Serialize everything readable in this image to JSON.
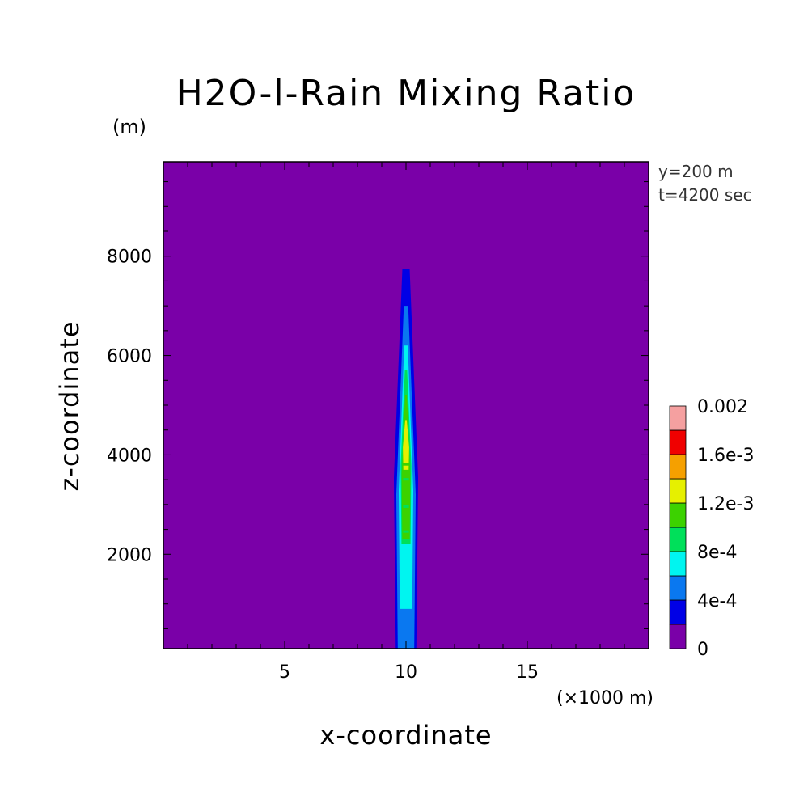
{
  "chart_data": {
    "type": "heatmap",
    "title": "H2O-l-Rain Mixing Ratio",
    "xlabel": "x-coordinate",
    "ylabel": "z-coordinate",
    "x_unit": "(×1000 m)",
    "y_unit": "(m)",
    "annotations": [
      "y=200 m",
      "t=4200 sec"
    ],
    "xlim": [
      0,
      20
    ],
    "ylim": [
      100,
      9900
    ],
    "xticks": [
      5,
      10,
      15
    ],
    "yticks": [
      2000,
      4000,
      6000,
      8000
    ],
    "colorbar": {
      "levels": [
        0,
        0.0002,
        0.0004,
        0.0006,
        0.0008,
        0.001,
        0.0012,
        0.0014,
        0.0016,
        0.0018,
        0.002
      ],
      "labels": [
        "0",
        "4e-4",
        "8e-4",
        "1.2e-3",
        "1.6e-3",
        "0.002"
      ],
      "colors": [
        "#7a00a8",
        "#0000e6",
        "#0a78f0",
        "#00f5f0",
        "#00e05a",
        "#3cd200",
        "#e6f000",
        "#f5a000",
        "#f00000",
        "#f5a0a0"
      ]
    },
    "column_profile": {
      "description": "plume centered near x=10 km; values by height",
      "x_center": 10,
      "contours": [
        {
          "level": 0.0002,
          "z_range": [
            100,
            7750
          ],
          "x_halfwidth": [
            0.25,
            0.5
          ]
        },
        {
          "level": 0.0004,
          "z_range": [
            100,
            7000
          ],
          "x_halfwidth": [
            0.15,
            0.4
          ]
        },
        {
          "level": 0.0006,
          "z_range": [
            900,
            6200
          ],
          "x_halfwidth": [
            0.12,
            0.3
          ]
        },
        {
          "level": 0.0008,
          "z_range": [
            2200,
            5700
          ],
          "x_halfwidth": [
            0.08,
            0.22
          ]
        },
        {
          "level": 0.001,
          "z_range": [
            2300,
            5200
          ],
          "x_halfwidth": [
            0.06,
            0.18
          ]
        },
        {
          "level": 0.0012,
          "z_range": [
            3700,
            4700
          ],
          "x_halfwidth": [
            0.05,
            0.13
          ]
        }
      ]
    }
  }
}
